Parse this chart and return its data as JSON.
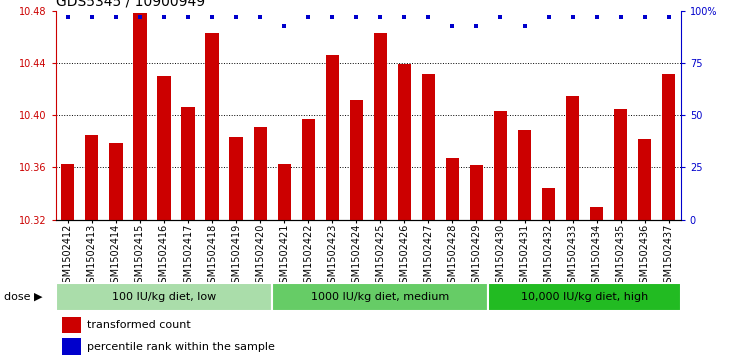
{
  "title": "GDS5345 / 10900949",
  "samples": [
    "GSM1502412",
    "GSM1502413",
    "GSM1502414",
    "GSM1502415",
    "GSM1502416",
    "GSM1502417",
    "GSM1502418",
    "GSM1502419",
    "GSM1502420",
    "GSM1502421",
    "GSM1502422",
    "GSM1502423",
    "GSM1502424",
    "GSM1502425",
    "GSM1502426",
    "GSM1502427",
    "GSM1502428",
    "GSM1502429",
    "GSM1502430",
    "GSM1502431",
    "GSM1502432",
    "GSM1502433",
    "GSM1502434",
    "GSM1502435",
    "GSM1502436",
    "GSM1502437"
  ],
  "bar_values": [
    10.363,
    10.385,
    10.379,
    10.478,
    10.43,
    10.406,
    10.463,
    10.383,
    10.391,
    10.363,
    10.397,
    10.446,
    10.412,
    10.463,
    10.439,
    10.432,
    10.367,
    10.362,
    10.403,
    10.389,
    10.344,
    10.415,
    10.33,
    10.405,
    10.382,
    10.432
  ],
  "percentile_values": [
    97,
    97,
    97,
    97,
    97,
    97,
    97,
    97,
    97,
    93,
    97,
    97,
    97,
    97,
    97,
    97,
    93,
    93,
    97,
    93,
    97,
    97,
    97,
    97,
    97,
    97
  ],
  "bar_color": "#cc0000",
  "dot_color": "#0000cc",
  "ymin": 10.32,
  "ymax": 10.48,
  "y_ticks": [
    10.32,
    10.36,
    10.4,
    10.44,
    10.48
  ],
  "right_yticks": [
    0,
    25,
    50,
    75,
    100
  ],
  "right_ytick_labels": [
    "0",
    "25",
    "50",
    "75",
    "100%"
  ],
  "group_starts": [
    0,
    9,
    18
  ],
  "group_ends": [
    9,
    18,
    26
  ],
  "group_labels": [
    "100 IU/kg diet, low",
    "1000 IU/kg diet, medium",
    "10,000 IU/kg diet, high"
  ],
  "group_colors": [
    "#aaddaa",
    "#66cc66",
    "#22bb22"
  ],
  "legend_labels": [
    "transformed count",
    "percentile rank within the sample"
  ],
  "legend_colors": [
    "#cc0000",
    "#0000cc"
  ],
  "dose_label": "dose",
  "plot_bg": "#ffffff",
  "title_fontsize": 10,
  "tick_fontsize": 7,
  "group_fontsize": 8,
  "legend_fontsize": 8
}
